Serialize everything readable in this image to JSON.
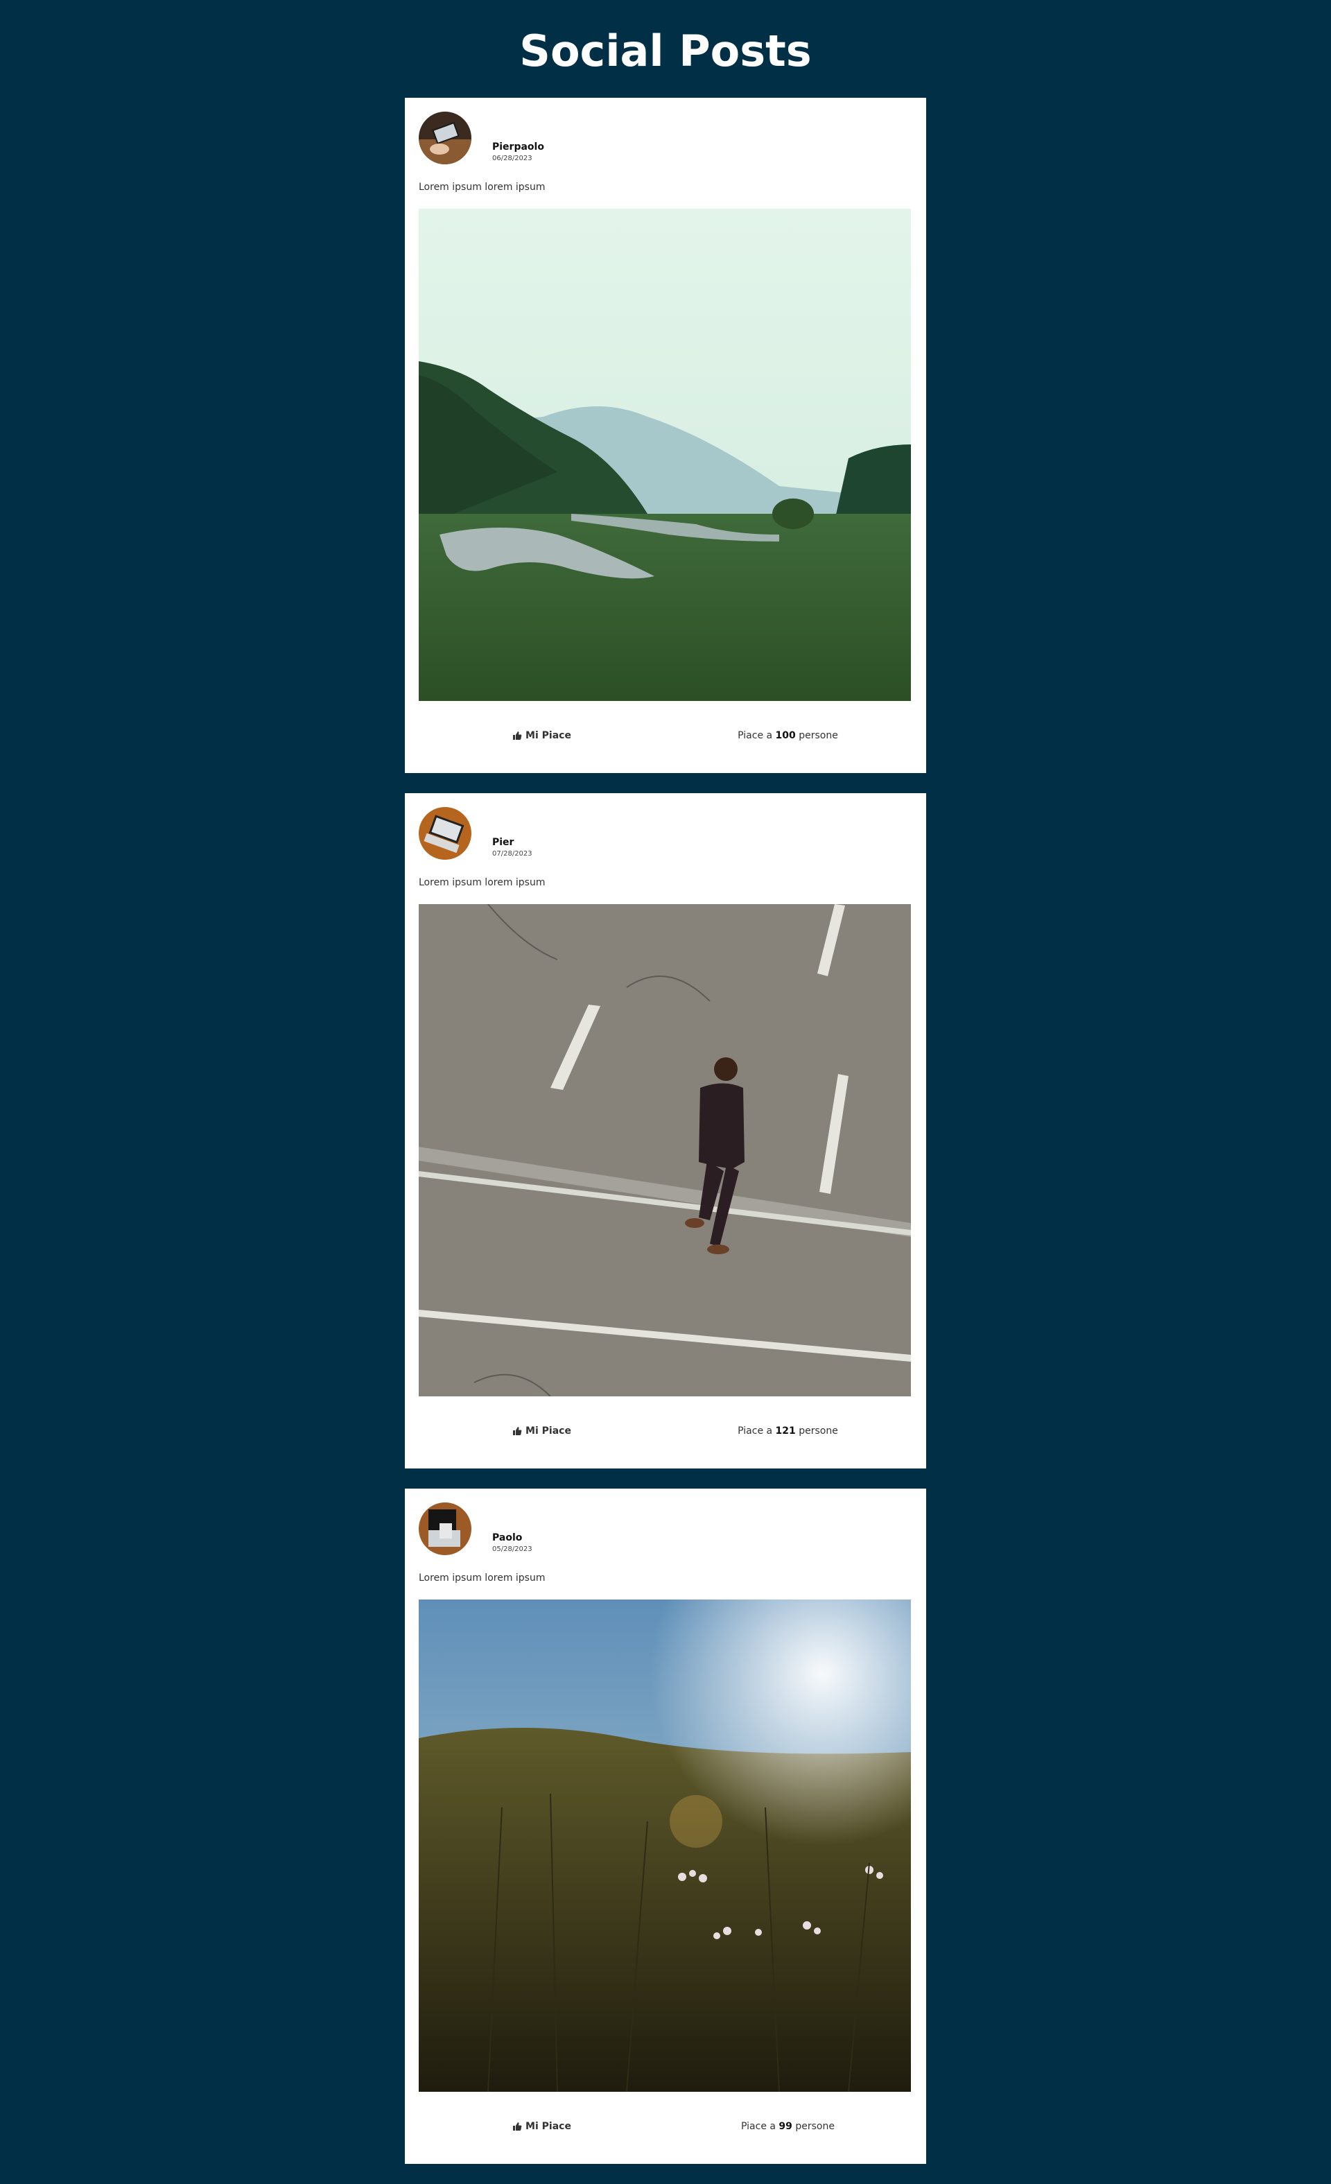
{
  "page": {
    "title": "Social Posts",
    "background": "#002f46"
  },
  "posts": [
    {
      "author": "Pierpaolo",
      "date": "06/28/2023",
      "text": "Lorem ipsum lorem ipsum",
      "image": "misty-lake-landscape",
      "like_label": "Mi Piace",
      "likes_prefix": "Piace a ",
      "likes_count": "100",
      "likes_suffix": " persone"
    },
    {
      "author": "Pier",
      "date": "07/28/2023",
      "text": "Lorem ipsum lorem ipsum",
      "image": "man-walking-on-road",
      "like_label": "Mi Piace",
      "likes_prefix": "Piace a ",
      "likes_count": "121",
      "likes_suffix": " persone"
    },
    {
      "author": "Paolo",
      "date": "05/28/2023",
      "text": "Lorem ipsum lorem ipsum",
      "image": "sunlit-meadow-flowers",
      "like_label": "Mi Piace",
      "likes_prefix": "Piace a ",
      "likes_count": "99",
      "likes_suffix": " persone"
    }
  ]
}
